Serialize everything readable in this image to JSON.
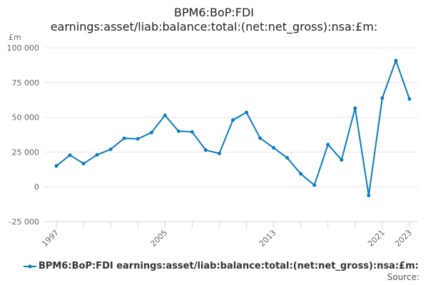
{
  "chart_data": {
    "type": "line",
    "title_line1": "BPM6:BoP:FDI",
    "title_line2": "earnings:asset/liab:balance:total:(net:net_gross):nsa:£m:",
    "ylabel": "£m",
    "ylim": [
      -25000,
      100000
    ],
    "yticks": [
      -25000,
      0,
      25000,
      50000,
      75000,
      100000
    ],
    "ytick_labels": [
      "-25 000",
      "0",
      "25 000",
      "50 000",
      "75 000",
      "100 000"
    ],
    "xtick_labels": [
      "1997",
      "2005",
      "2013",
      "2021",
      "2023"
    ],
    "grid": true,
    "legend_position": "bottom",
    "x": [
      1997,
      1998,
      1999,
      2000,
      2001,
      2002,
      2003,
      2004,
      2005,
      2006,
      2007,
      2008,
      2009,
      2010,
      2011,
      2012,
      2013,
      2014,
      2015,
      2016,
      2017,
      2018,
      2019,
      2020,
      2021,
      2022,
      2023
    ],
    "series": [
      {
        "name": "BPM6:BoP:FDI earnings:asset/liab:balance:total:(net:net_gross):nsa:£m:",
        "color": "#0a7bc1",
        "values": [
          15000,
          22800,
          16700,
          23000,
          27000,
          34900,
          34500,
          39000,
          51400,
          40000,
          39500,
          26400,
          24000,
          48000,
          53500,
          35000,
          28000,
          20800,
          9300,
          1200,
          30400,
          19400,
          56500,
          -6200,
          63800,
          90800,
          63200
        ]
      }
    ]
  },
  "source_label": "Source:"
}
